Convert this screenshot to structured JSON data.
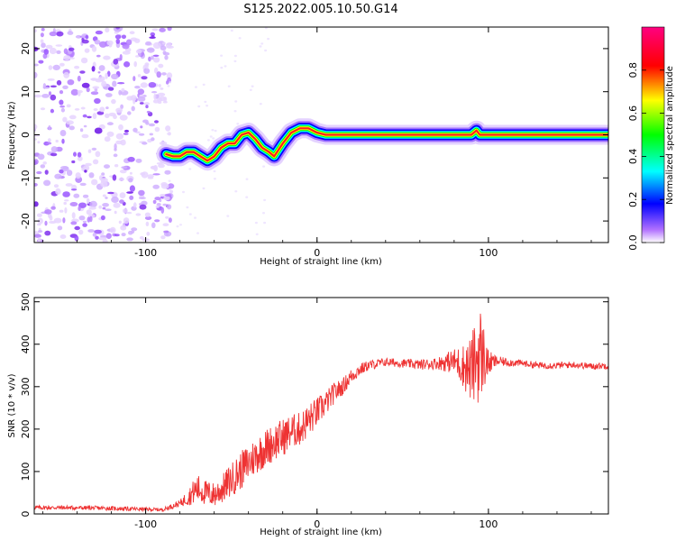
{
  "title": "S125.2022.005.10.50.G14",
  "chart_data": [
    {
      "type": "heatmap",
      "xlabel": "Height of straight line (km)",
      "ylabel": "Frequency (Hz)",
      "xlim": [
        -165,
        170
      ],
      "ylim": [
        -25,
        25
      ],
      "x_ticks": [
        -100,
        0,
        100
      ],
      "y_ticks": [
        -20,
        -10,
        0,
        10,
        20
      ],
      "colorbar": {
        "label": "Normalized spectral amplitude",
        "range": [
          0,
          1
        ],
        "ticks": [
          "0.0",
          "0.2",
          "0.4",
          "0.6",
          "0.8"
        ],
        "colormap": [
          "#ffffff",
          "#a040ff",
          "#0000ff",
          "#00ffff",
          "#00ff00",
          "#ffff00",
          "#ff0000",
          "#ff0080"
        ]
      },
      "noise_region_x": [
        -165,
        -88
      ],
      "ridge": {
        "x": [
          -88,
          -84,
          -80,
          -76,
          -72,
          -68,
          -64,
          -60,
          -56,
          -52,
          -48,
          -44,
          -40,
          -36,
          -32,
          -28,
          -25,
          -20,
          -15,
          -10,
          -5,
          0,
          5,
          10,
          20,
          40,
          60,
          80,
          90,
          93,
          95,
          100,
          120,
          140,
          160,
          170
        ],
        "y": [
          -4.5,
          -5,
          -5,
          -4,
          -4,
          -5,
          -6,
          -5,
          -3,
          -2,
          -2,
          0,
          0.5,
          -1,
          -3,
          -4,
          -5,
          -2,
          0.5,
          1.5,
          1.5,
          0.5,
          0,
          0,
          0,
          0,
          0,
          0,
          0,
          1,
          0,
          0,
          0,
          0,
          0,
          0
        ]
      }
    },
    {
      "type": "line",
      "xlabel": "Height of straight line (km)",
      "ylabel": "SNR (10 * v/v)",
      "xlim": [
        -165,
        170
      ],
      "ylim": [
        0,
        510
      ],
      "x_ticks": [
        -100,
        0,
        100
      ],
      "y_ticks": [
        0,
        100,
        200,
        300,
        400,
        500
      ],
      "series": [
        {
          "color": "#ee3333",
          "x": [
            -165,
            -150,
            -130,
            -110,
            -90,
            -80,
            -75,
            -70,
            -65,
            -60,
            -55,
            -50,
            -45,
            -40,
            -35,
            -30,
            -25,
            -20,
            -15,
            -10,
            -5,
            0,
            5,
            10,
            15,
            20,
            25,
            30,
            40,
            50,
            60,
            70,
            80,
            85,
            90,
            95,
            100,
            105,
            110,
            120,
            130,
            140,
            150,
            160,
            170
          ],
          "y": [
            15,
            15,
            14,
            12,
            10,
            25,
            40,
            60,
            50,
            45,
            60,
            80,
            100,
            120,
            140,
            155,
            170,
            180,
            195,
            200,
            220,
            240,
            260,
            285,
            300,
            325,
            340,
            350,
            358,
            355,
            352,
            355,
            360,
            350,
            340,
            380,
            355,
            360,
            358,
            355,
            350,
            350,
            352,
            348,
            350
          ],
          "amplitude": [
            5,
            5,
            5,
            5,
            4,
            8,
            20,
            35,
            30,
            30,
            35,
            40,
            45,
            45,
            45,
            45,
            45,
            45,
            40,
            40,
            40,
            35,
            30,
            25,
            20,
            18,
            15,
            12,
            10,
            10,
            12,
            14,
            30,
            50,
            80,
            120,
            30,
            12,
            10,
            8,
            8,
            8,
            8,
            8,
            8
          ]
        }
      ]
    }
  ]
}
